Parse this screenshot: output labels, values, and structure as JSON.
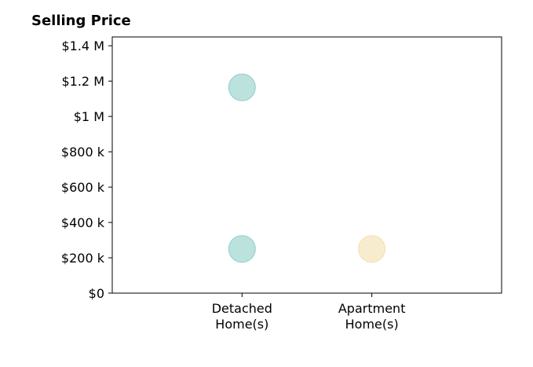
{
  "chart_data": {
    "type": "scatter",
    "title": "Selling Price",
    "xlabel": "",
    "ylabel": "",
    "categories": [
      "Detached\nHome(s)",
      "Apartment\nHome(s)"
    ],
    "category_positions": [
      1,
      2
    ],
    "xlim": [
      0,
      3
    ],
    "ylim": [
      0,
      1450000
    ],
    "yticks": [
      0,
      200000,
      400000,
      600000,
      800000,
      1000000,
      1200000,
      1400000
    ],
    "ytick_labels": [
      "$0",
      "$200 k",
      "$400 k",
      "$600 k",
      "$800 k",
      "$1 M",
      "$1.2 M",
      "$1.4 M"
    ],
    "grid": false,
    "points": [
      {
        "category": "Detached\nHome(s)",
        "x": 1,
        "y": 1165000,
        "color": "#8fcfc8"
      },
      {
        "category": "Detached\nHome(s)",
        "x": 1,
        "y": 250000,
        "color": "#8fcfc8"
      },
      {
        "category": "Apartment\nHome(s)",
        "x": 2,
        "y": 250000,
        "color": "#f3dfae"
      }
    ]
  }
}
